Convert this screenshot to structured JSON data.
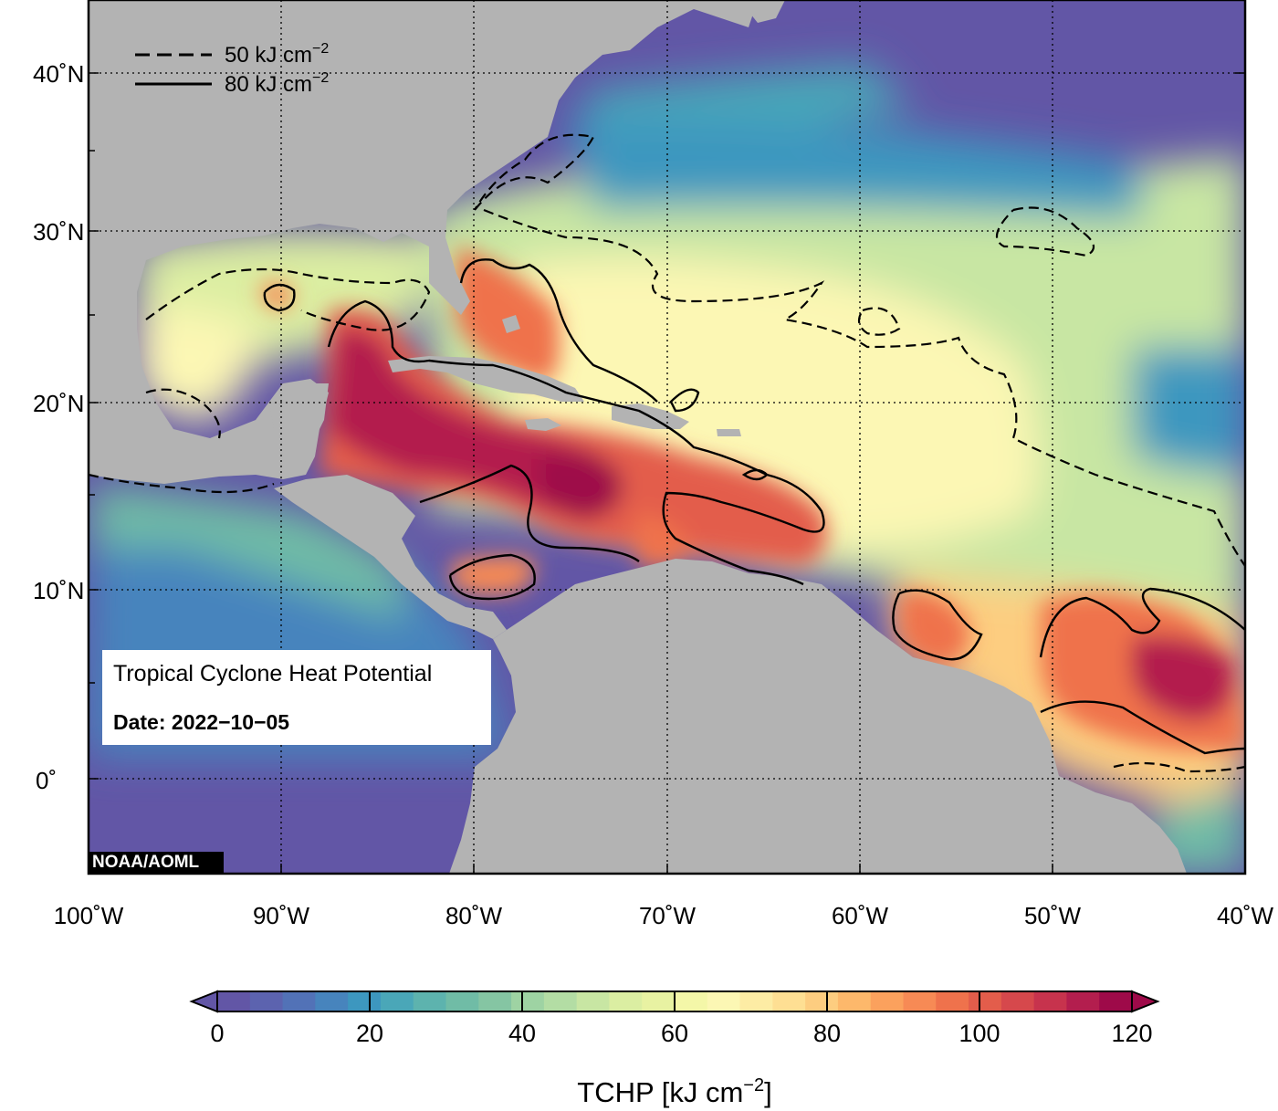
{
  "map": {
    "type": "filled-contour map",
    "variable": "Tropical Cyclone Heat Potential",
    "lon_range": [
      -100,
      -40
    ],
    "lat_range": [
      -5,
      45
    ],
    "grid": true
  },
  "axes": {
    "lon_ticks": [
      "100˚W",
      "90˚W",
      "80˚W",
      "70˚W",
      "60˚W",
      "50˚W",
      "40˚W"
    ],
    "lat_ticks": [
      "40˚N",
      "30˚N",
      "20˚N",
      "10˚N",
      "0˚"
    ]
  },
  "legend": {
    "dashed_label": "50 kJ cm",
    "solid_label": "80 kJ cm",
    "exponent": "−2",
    "placement": "top-left"
  },
  "info": {
    "title": "Tropical Cyclone Heat Potential",
    "date": "Date: 2022−10−05"
  },
  "credit": "NOAA/AOML",
  "colorbar": {
    "ticks": [
      "0",
      "20",
      "40",
      "60",
      "80",
      "100",
      "120"
    ],
    "title_prefix": "TCHP [kJ cm",
    "title_exponent": "−2",
    "title_suffix": "]",
    "colors": [
      "#6256a6",
      "#5c63af",
      "#5272b7",
      "#4784bd",
      "#3d97bf",
      "#4aa7b8",
      "#5db3ae",
      "#70bca6",
      "#85c5a3",
      "#9ed3a3",
      "#b3dda4",
      "#c8e6a3",
      "#dbeea2",
      "#e8f2a2",
      "#f4f7a8",
      "#fcf7b4",
      "#fdeca4",
      "#fedf93",
      "#fdcd80",
      "#fdb86b",
      "#fba15d",
      "#f78a55",
      "#ef724c",
      "#e35d4b",
      "#d6484c",
      "#c7334d",
      "#b31e4e",
      "#9e0a49"
    ],
    "range": [
      0,
      120
    ]
  },
  "colors": {
    "land": "#b3b3b3",
    "grid": "#000000"
  }
}
